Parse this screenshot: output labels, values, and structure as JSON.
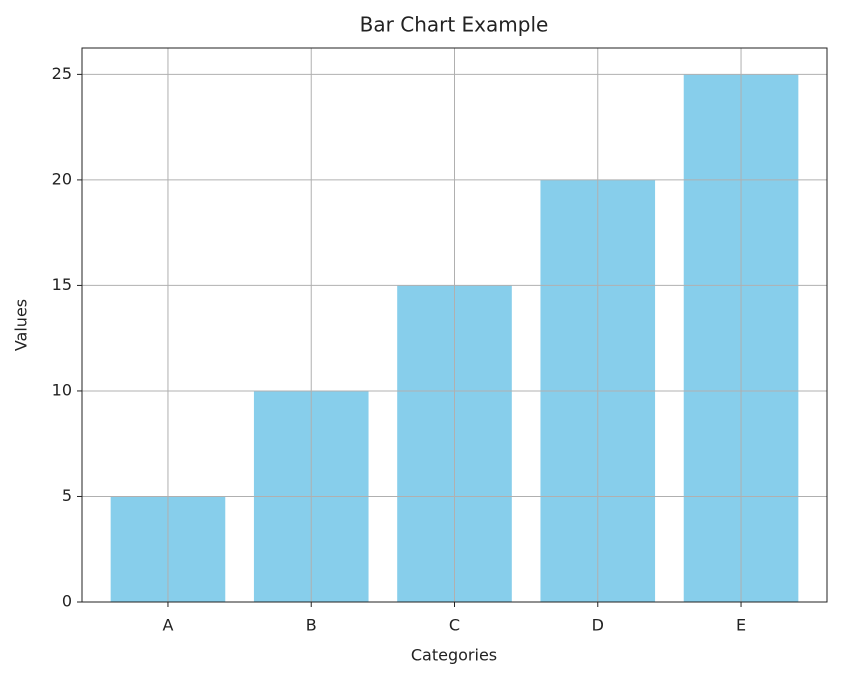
{
  "chart_data": {
    "type": "bar",
    "title": "Bar Chart Example",
    "x_label": "Categories",
    "y_label": "Values",
    "categories": [
      "A",
      "B",
      "C",
      "D",
      "E"
    ],
    "values": [
      5,
      10,
      15,
      20,
      25
    ],
    "color": "#87ceeb",
    "ylim": [
      0,
      26.25
    ],
    "yticks": [
      0,
      5,
      10,
      15,
      20,
      25
    ],
    "grid": true
  }
}
